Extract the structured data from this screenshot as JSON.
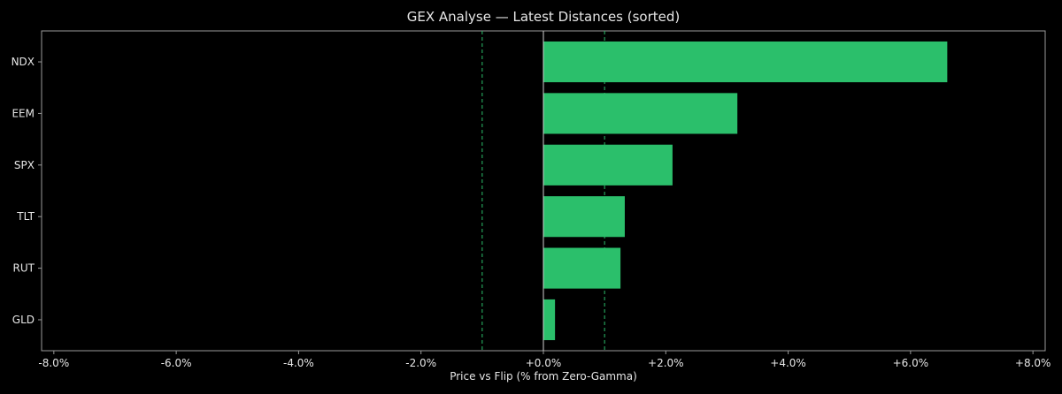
{
  "chart_data": {
    "type": "bar",
    "orientation": "horizontal",
    "title": "GEX Analyse — Latest Distances (sorted)",
    "xlabel": "Price vs Flip (% from Zero-Gamma)",
    "ylabel": "",
    "categories": [
      "NDX",
      "EEM",
      "SPX",
      "TLT",
      "RUT",
      "GLD"
    ],
    "values": [
      6.6,
      3.17,
      2.11,
      1.33,
      1.26,
      0.19
    ],
    "xlim": [
      -8.2,
      8.2
    ],
    "xticks": [
      -8,
      -6,
      -4,
      -2,
      0,
      2,
      4,
      6,
      8
    ],
    "xtick_labels": [
      "-8.0%",
      "-6.0%",
      "-4.0%",
      "-2.0%",
      "+0.0%",
      "+2.0%",
      "+4.0%",
      "+6.0%",
      "+8.0%"
    ],
    "reference_lines": [
      -1.0,
      1.0
    ],
    "zero_line": 0,
    "grid": false,
    "colors": {
      "background": "#000000",
      "bar": "#2bbf6b",
      "reference_line": "#2bbf6b",
      "zero_line": "#cfcfcf",
      "axes": "#9a9a9a",
      "text": "#e6e6e6"
    }
  }
}
